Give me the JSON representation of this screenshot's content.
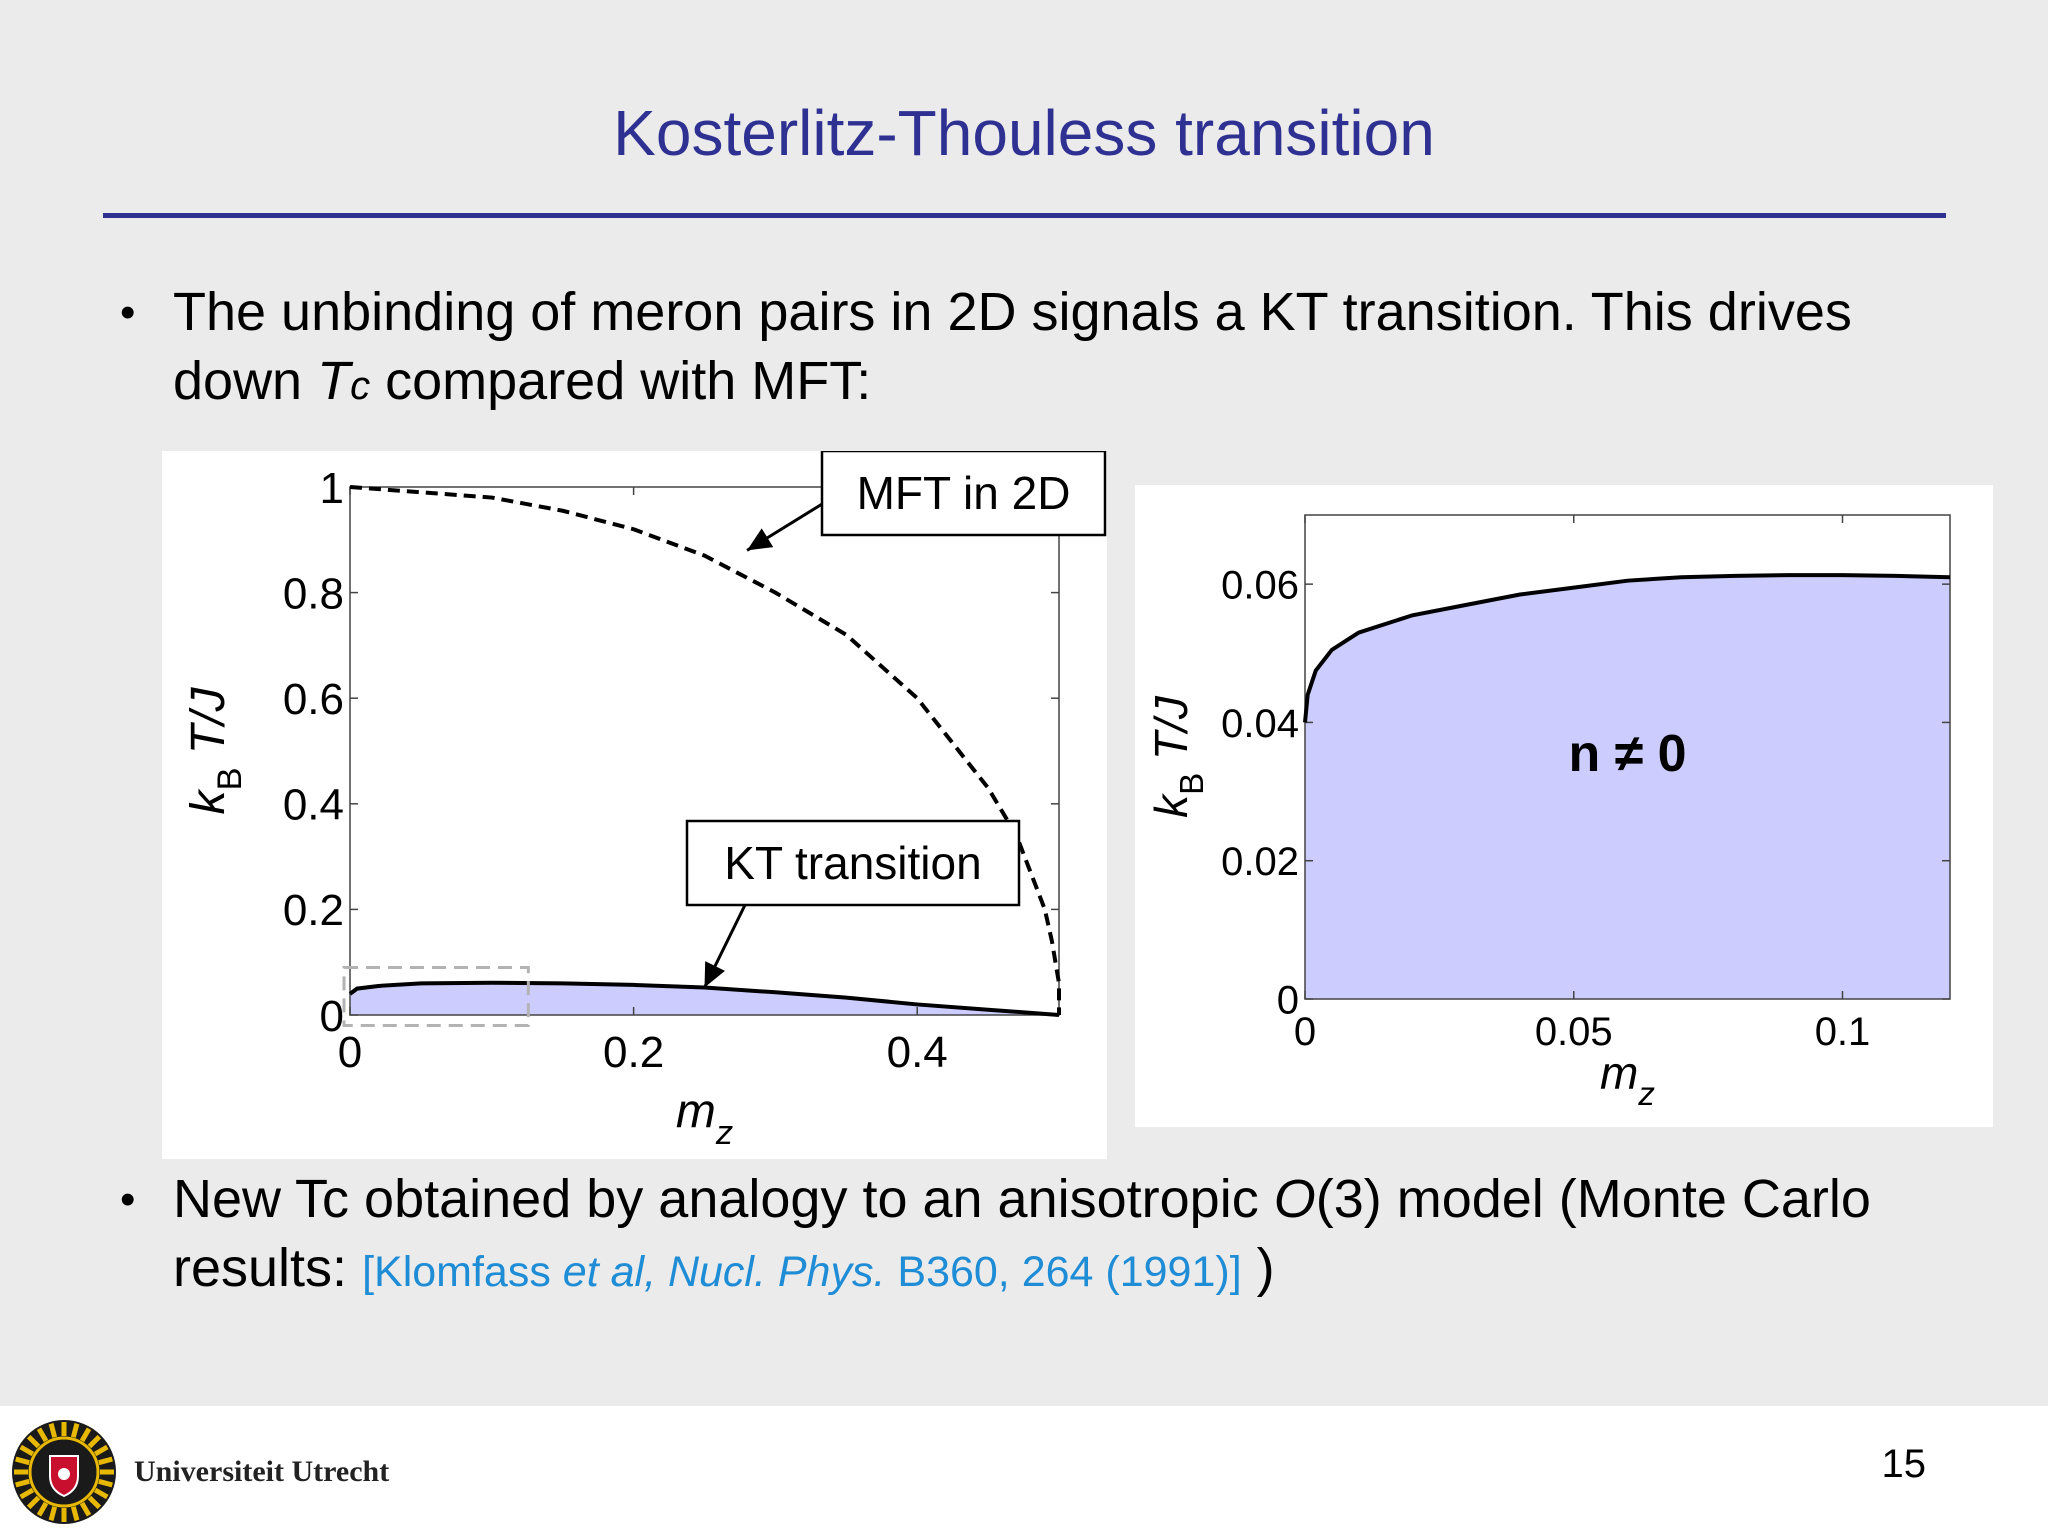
{
  "slide": {
    "title": "Kosterlitz-Thouless transition",
    "bullet1_pre": "The unbinding of meron pairs in 2D signals a KT transition. This drives down ",
    "bullet1_T": "T",
    "bullet1_c": "c",
    "bullet1_post": " compared with MFT:",
    "bullet2_pre": "New Tc obtained by analogy to an anisotropic ",
    "bullet2_O": "O",
    "bullet2_mid": "(3) model (Monte Carlo results: ",
    "cite_pre": "[Klomfass ",
    "cite_etal": "et al, Nucl. Phys.",
    "cite_post": " B360, 264 (1991)]",
    "bullet2_end": " )",
    "page_number": "15",
    "university": "Universiteit Utrecht"
  },
  "colors": {
    "title": "#2e3192",
    "fill": "#ccccff",
    "cite": "#1f8cd6"
  },
  "chart_data": [
    {
      "type": "area",
      "xlabel": "m",
      "xlabel_sub": "z",
      "ylabel_k": "k",
      "ylabel_sub": "B",
      "ylabel_rest": " T/J",
      "xlim": [
        0,
        0.5
      ],
      "ylim": [
        0,
        1
      ],
      "xticks": [
        0,
        0.2,
        0.4
      ],
      "xtick_labels": [
        "0",
        "0.2",
        "0.4"
      ],
      "yticks": [
        0,
        0.2,
        0.4,
        0.6,
        0.8,
        1
      ],
      "ytick_labels": [
        "0",
        "0.2",
        "0.4",
        "0.6",
        "0.8",
        "1"
      ],
      "series": [
        {
          "name": "MFT in 2D",
          "style": "dashed",
          "x": [
            0,
            0.05,
            0.1,
            0.15,
            0.2,
            0.25,
            0.3,
            0.35,
            0.4,
            0.45,
            0.47,
            0.49,
            0.495,
            0.5,
            0.5
          ],
          "y": [
            1,
            0.99,
            0.98,
            0.955,
            0.92,
            0.87,
            0.8,
            0.72,
            0.6,
            0.43,
            0.34,
            0.2,
            0.14,
            0.06,
            0
          ]
        },
        {
          "name": "KT transition",
          "style": "solid-filled",
          "x": [
            0,
            0.005,
            0.02,
            0.05,
            0.1,
            0.15,
            0.2,
            0.25,
            0.3,
            0.35,
            0.4,
            0.45,
            0.5
          ],
          "y": [
            0.04,
            0.05,
            0.055,
            0.06,
            0.061,
            0.06,
            0.057,
            0.052,
            0.043,
            0.033,
            0.02,
            0.01,
            0
          ]
        }
      ],
      "annotations": [
        {
          "text": "MFT in 2D",
          "target_x": 0.28,
          "target_y": 0.88
        },
        {
          "text": "KT transition",
          "target_x": 0.25,
          "target_y": 0.052
        }
      ],
      "zoom_box": {
        "x": [
          0,
          0.13
        ],
        "y": [
          -0.02,
          0.09
        ]
      }
    },
    {
      "type": "area",
      "xlabel": "m",
      "xlabel_sub": "z",
      "ylabel_k": "k",
      "ylabel_sub": "B",
      "ylabel_rest": " T/J",
      "xlim": [
        0,
        0.12
      ],
      "ylim": [
        0,
        0.07
      ],
      "xticks": [
        0,
        0.05,
        0.1
      ],
      "xtick_labels": [
        "0",
        "0.05",
        "0.1"
      ],
      "yticks": [
        0,
        0.02,
        0.04,
        0.06
      ],
      "ytick_labels": [
        "0",
        "0.02",
        "0.04",
        "0.06"
      ],
      "region_label": "n ≠ 0",
      "series": [
        {
          "name": "KT transition",
          "style": "solid-filled",
          "x": [
            0,
            0.0005,
            0.002,
            0.005,
            0.01,
            0.02,
            0.03,
            0.04,
            0.05,
            0.06,
            0.07,
            0.08,
            0.09,
            0.1,
            0.11,
            0.12
          ],
          "y": [
            0.04,
            0.044,
            0.0475,
            0.0505,
            0.053,
            0.0555,
            0.057,
            0.0585,
            0.0595,
            0.0605,
            0.061,
            0.0612,
            0.0613,
            0.0613,
            0.0612,
            0.061
          ]
        }
      ]
    }
  ]
}
